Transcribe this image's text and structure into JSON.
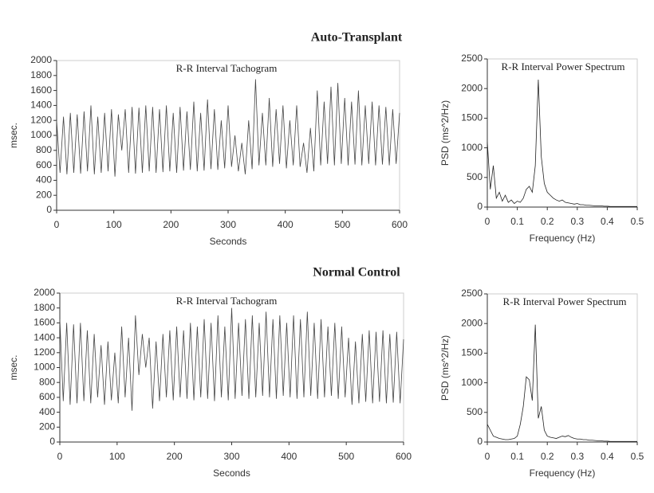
{
  "headings": [
    "Auto-Transplant",
    "Normal Control"
  ],
  "chart_data": [
    {
      "type": "line",
      "title": "R-R Interval Tachogram",
      "x_label": "Seconds",
      "y_label": "msec.",
      "color": "#444",
      "x": [
        0,
        6,
        12,
        18,
        24,
        30,
        36,
        42,
        48,
        54,
        60,
        66,
        72,
        78,
        84,
        90,
        96,
        102,
        108,
        114,
        120,
        126,
        132,
        138,
        144,
        150,
        156,
        162,
        168,
        174,
        180,
        186,
        192,
        198,
        204,
        210,
        216,
        222,
        228,
        234,
        240,
        246,
        252,
        258,
        264,
        270,
        276,
        282,
        288,
        294,
        300,
        306,
        312,
        318,
        324,
        330,
        336,
        342,
        348,
        354,
        360,
        366,
        372,
        378,
        384,
        390,
        396,
        402,
        408,
        414,
        420,
        426,
        432,
        438,
        444,
        450,
        456,
        462,
        468,
        474,
        480,
        486,
        492,
        498,
        504,
        510,
        516,
        522,
        528,
        534,
        540,
        546,
        552,
        558,
        564,
        570,
        576,
        582,
        588,
        594,
        600
      ],
      "values": [
        1200,
        500,
        1250,
        480,
        1300,
        500,
        1280,
        490,
        1320,
        520,
        1400,
        480,
        1250,
        500,
        1300,
        520,
        1350,
        450,
        1280,
        800,
        1350,
        500,
        1380,
        490,
        1370,
        500,
        1400,
        520,
        1380,
        500,
        1350,
        510,
        1400,
        520,
        1300,
        500,
        1380,
        530,
        1320,
        540,
        1450,
        520,
        1300,
        530,
        1480,
        550,
        1350,
        540,
        1200,
        560,
        1400,
        580,
        1000,
        520,
        900,
        480,
        1200,
        550,
        1750,
        600,
        1300,
        600,
        1500,
        580,
        1350,
        620,
        1400,
        560,
        1200,
        600,
        1400,
        580,
        900,
        500,
        1100,
        520,
        1600,
        600,
        1450,
        620,
        1650,
        600,
        1700,
        620,
        1500,
        600,
        1450,
        610,
        1600,
        600,
        1400,
        620,
        1450,
        600,
        1400,
        610,
        1380,
        600,
        1350,
        620,
        1300
      ],
      "xlim": [
        0,
        600
      ],
      "xticks": [
        0,
        100,
        200,
        300,
        400,
        500,
        600
      ],
      "ylim": [
        0,
        2000
      ],
      "yticks": [
        0,
        200,
        400,
        600,
        800,
        1000,
        1200,
        1400,
        1600,
        1800,
        2000
      ]
    },
    {
      "type": "line",
      "title": "R-R Interval Power Spectrum",
      "x_label": "Frequency (Hz)",
      "y_label": "PSD (ms^2/Hz)",
      "color": "#222",
      "x": [
        0,
        0.01,
        0.02,
        0.03,
        0.04,
        0.05,
        0.06,
        0.07,
        0.08,
        0.09,
        0.1,
        0.11,
        0.12,
        0.13,
        0.14,
        0.15,
        0.16,
        0.17,
        0.18,
        0.19,
        0.2,
        0.21,
        0.22,
        0.23,
        0.24,
        0.25,
        0.26,
        0.27,
        0.28,
        0.29,
        0.3,
        0.31,
        0.32,
        0.33,
        0.34,
        0.35,
        0.36,
        0.37,
        0.38,
        0.39,
        0.4,
        0.41,
        0.42,
        0.43,
        0.44,
        0.45,
        0.46,
        0.47,
        0.48,
        0.49,
        0.5
      ],
      "values": [
        1100,
        300,
        700,
        150,
        250,
        100,
        200,
        80,
        120,
        60,
        100,
        80,
        150,
        300,
        350,
        250,
        700,
        2150,
        850,
        400,
        250,
        200,
        150,
        120,
        100,
        120,
        80,
        70,
        60,
        50,
        60,
        40,
        40,
        30,
        30,
        25,
        20,
        20,
        20,
        15,
        15,
        10,
        10,
        10,
        10,
        10,
        10,
        10,
        10,
        10,
        10
      ],
      "xlim": [
        0,
        0.5
      ],
      "xticks": [
        0,
        0.1,
        0.2,
        0.3,
        0.4,
        0.5
      ],
      "ylim": [
        0,
        2500
      ],
      "yticks": [
        0,
        500,
        1000,
        1500,
        2000,
        2500
      ]
    },
    {
      "type": "line",
      "title": "R-R Interval Tachogram",
      "x_label": "Seconds",
      "y_label": "msec.",
      "color": "#444",
      "x": [
        0,
        6,
        12,
        18,
        24,
        30,
        36,
        42,
        48,
        54,
        60,
        66,
        72,
        78,
        84,
        90,
        96,
        102,
        108,
        114,
        120,
        126,
        132,
        138,
        144,
        150,
        156,
        162,
        168,
        174,
        180,
        186,
        192,
        198,
        204,
        210,
        216,
        222,
        228,
        234,
        240,
        246,
        252,
        258,
        264,
        270,
        276,
        282,
        288,
        294,
        300,
        306,
        312,
        318,
        324,
        330,
        336,
        342,
        348,
        354,
        360,
        366,
        372,
        378,
        384,
        390,
        396,
        402,
        408,
        414,
        420,
        426,
        432,
        438,
        444,
        450,
        456,
        462,
        468,
        474,
        480,
        486,
        492,
        498,
        504,
        510,
        516,
        522,
        528,
        534,
        540,
        546,
        552,
        558,
        564,
        570,
        576,
        582,
        588,
        594,
        600
      ],
      "values": [
        1650,
        550,
        1600,
        500,
        1580,
        520,
        1600,
        550,
        1500,
        520,
        1450,
        600,
        1300,
        500,
        1350,
        560,
        1200,
        520,
        1550,
        600,
        1400,
        420,
        1700,
        900,
        1450,
        1000,
        1400,
        450,
        1350,
        550,
        1450,
        600,
        1500,
        560,
        1550,
        600,
        1500,
        580,
        1600,
        560,
        1550,
        600,
        1650,
        580,
        1600,
        550,
        1700,
        600,
        1550,
        560,
        1800,
        580,
        1600,
        620,
        1650,
        580,
        1700,
        600,
        1600,
        620,
        1750,
        600,
        1650,
        580,
        1700,
        620,
        1600,
        600,
        1700,
        580,
        1650,
        600,
        1750,
        620,
        1600,
        580,
        1650,
        600,
        1550,
        620,
        1600,
        580,
        1550,
        600,
        1400,
        500,
        1350,
        520,
        1450,
        540,
        1500,
        520,
        1480,
        540,
        1500,
        520,
        1450,
        530,
        1480,
        520,
        1380
      ],
      "xlim": [
        0,
        600
      ],
      "xticks": [
        0,
        100,
        200,
        300,
        400,
        500,
        600
      ],
      "ylim": [
        0,
        2000
      ],
      "yticks": [
        0,
        200,
        400,
        600,
        800,
        1000,
        1200,
        1400,
        1600,
        1800,
        2000
      ]
    },
    {
      "type": "line",
      "title": "R-R Interval Power Spectrum",
      "x_label": "Frequency (Hz)",
      "y_label": "PSD (ms^2/Hz)",
      "color": "#222",
      "x": [
        0,
        0.01,
        0.02,
        0.03,
        0.04,
        0.05,
        0.06,
        0.07,
        0.08,
        0.09,
        0.1,
        0.11,
        0.12,
        0.13,
        0.14,
        0.15,
        0.16,
        0.17,
        0.18,
        0.19,
        0.2,
        0.21,
        0.22,
        0.23,
        0.24,
        0.25,
        0.26,
        0.27,
        0.28,
        0.29,
        0.3,
        0.31,
        0.32,
        0.33,
        0.34,
        0.35,
        0.36,
        0.37,
        0.38,
        0.39,
        0.4,
        0.41,
        0.42,
        0.43,
        0.44,
        0.45,
        0.46,
        0.47,
        0.48,
        0.49,
        0.5
      ],
      "values": [
        300,
        200,
        100,
        80,
        60,
        50,
        40,
        40,
        50,
        60,
        100,
        300,
        600,
        1100,
        1050,
        700,
        1980,
        400,
        600,
        200,
        100,
        80,
        70,
        60,
        80,
        100,
        90,
        110,
        80,
        60,
        50,
        50,
        40,
        40,
        30,
        30,
        25,
        20,
        20,
        15,
        15,
        10,
        10,
        10,
        10,
        10,
        10,
        10,
        10,
        10,
        10
      ],
      "xlim": [
        0,
        0.5
      ],
      "xticks": [
        0,
        0.1,
        0.2,
        0.3,
        0.4,
        0.5
      ],
      "ylim": [
        0,
        2500
      ],
      "yticks": [
        0,
        500,
        1000,
        1500,
        2000,
        2500
      ]
    }
  ]
}
